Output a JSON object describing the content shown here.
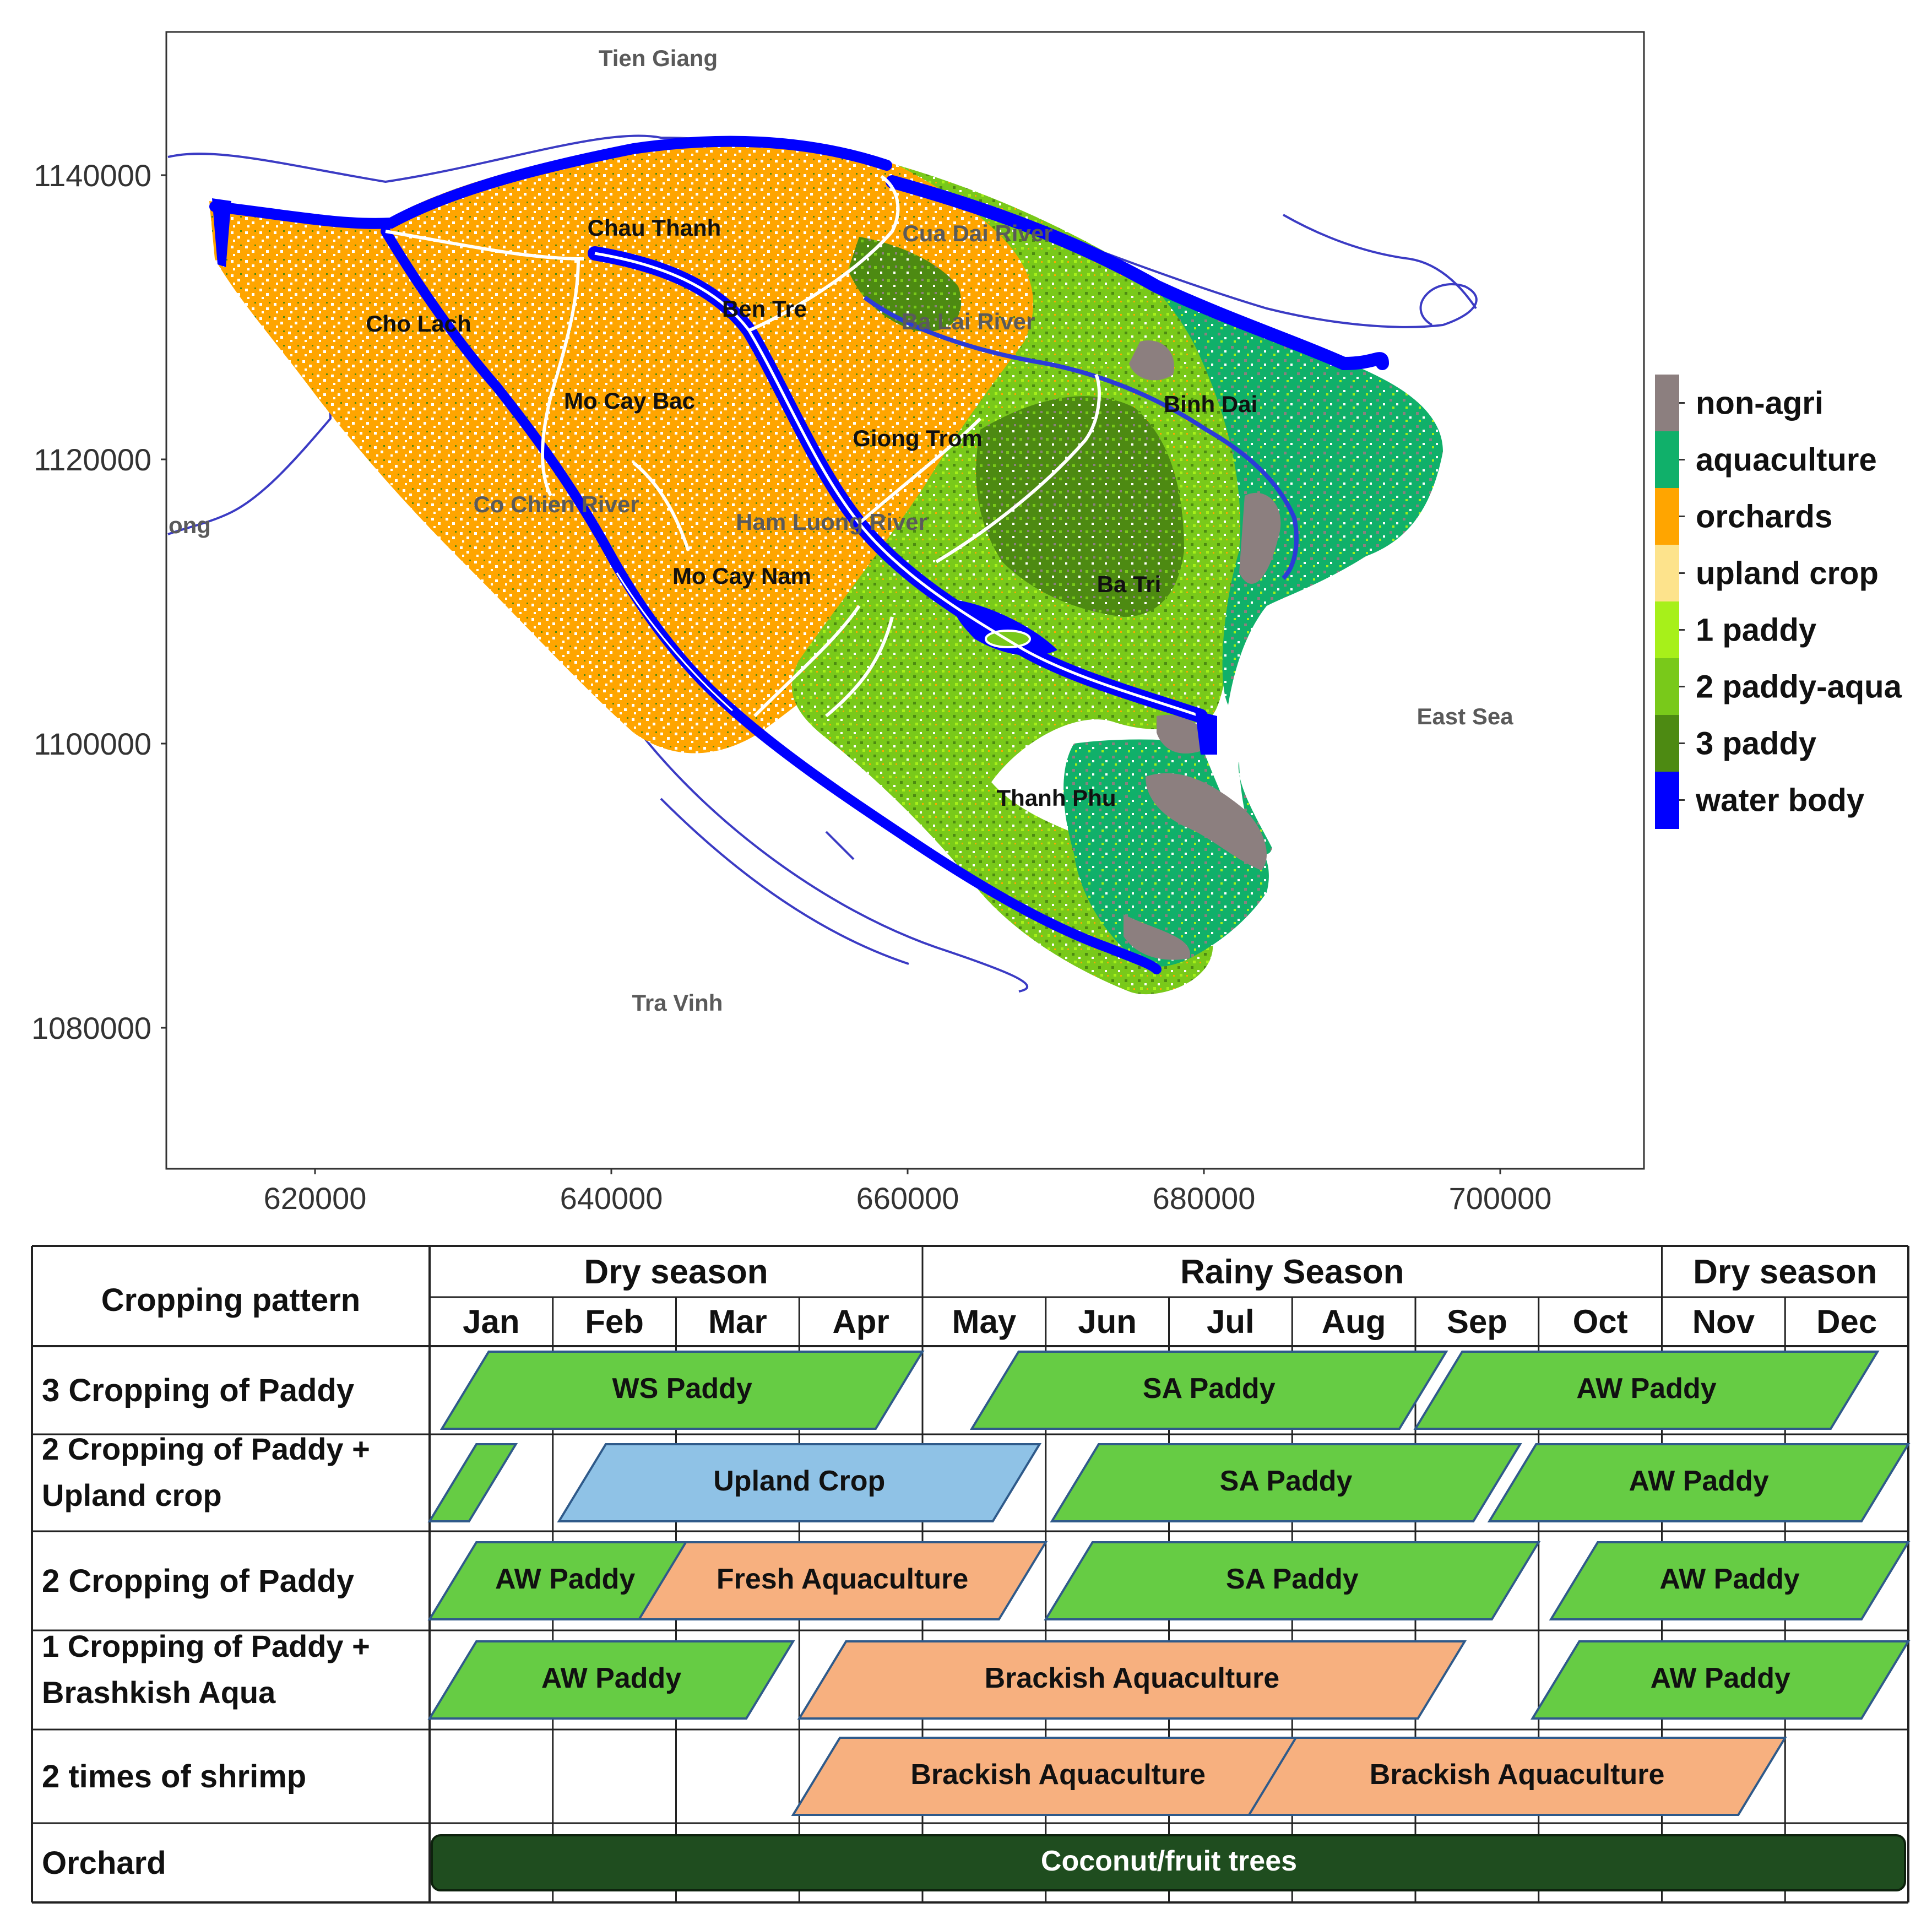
{
  "map": {
    "neighbors": [
      "Tien Giang",
      "Tra Vinh",
      "East Sea",
      "ong"
    ],
    "districts": [
      "Chau Thanh",
      "Cho Lach",
      "Ben Tre",
      "Mo Cay Bac",
      "Giong Trom",
      "Binh Dai",
      "Ba Tri",
      "Mo Cay Nam",
      "Thanh Phu"
    ],
    "rivers": [
      "Cua Dai River",
      "Ba Lai River",
      "Co Chien River",
      "Ham Luong River"
    ],
    "y_ticks": [
      "1140000",
      "1120000",
      "1100000",
      "1080000"
    ],
    "x_ticks": [
      "620000",
      "640000",
      "660000",
      "680000",
      "700000"
    ]
  },
  "legend": [
    {
      "label": "non-agri",
      "color": "#8c7f7f"
    },
    {
      "label": "aquaculture",
      "color": "#10b06a"
    },
    {
      "label": "orchards",
      "color": "#ffa500"
    },
    {
      "label": "upland crop",
      "color": "#fde38c"
    },
    {
      "label": "1 paddy",
      "color": "#a7f01a"
    },
    {
      "label": "2 paddy-aqua",
      "color": "#79c91a"
    },
    {
      "label": "3 paddy",
      "color": "#4d8a12"
    },
    {
      "label": "water body",
      "color": "#0000ff"
    }
  ],
  "calendar": {
    "pattern_header": "Cropping pattern",
    "seasons": [
      "Dry season",
      "Rainy Season",
      "Dry season"
    ],
    "months": [
      "Jan",
      "Feb",
      "Mar",
      "Apr",
      "May",
      "Jun",
      "Jul",
      "Aug",
      "Sep",
      "Oct",
      "Nov",
      "Dec"
    ],
    "rows": [
      {
        "name": "3 Cropping of Paddy",
        "bars": [
          {
            "label": "WS Paddy",
            "kind": "paddy",
            "start": 0.1,
            "end": 4.0
          },
          {
            "label": "SA Paddy",
            "kind": "paddy",
            "start": 4.4,
            "end": 8.25
          },
          {
            "label": "AW Paddy",
            "kind": "paddy",
            "start": 8.0,
            "end": 11.75
          }
        ]
      },
      {
        "name_lines": [
          "2 Cropping of Paddy +",
          "Upland crop"
        ],
        "bars": [
          {
            "label": "",
            "kind": "paddy",
            "start": 0.0,
            "end": 0.7
          },
          {
            "label": "Upland Crop",
            "kind": "upland",
            "start": 1.05,
            "end": 4.95
          },
          {
            "label": "SA Paddy",
            "kind": "paddy",
            "start": 5.05,
            "end": 8.85
          },
          {
            "label": "AW Paddy",
            "kind": "paddy",
            "start": 8.6,
            "end": 12.0
          }
        ]
      },
      {
        "name": "2 Cropping of Paddy",
        "bars": [
          {
            "label": "AW Paddy",
            "kind": "paddy",
            "start": 0.0,
            "end": 2.2
          },
          {
            "label": "Fresh Aquaculture",
            "kind": "aqua",
            "start": 1.7,
            "end": 5.0
          },
          {
            "label": "SA Paddy",
            "kind": "paddy",
            "start": 5.0,
            "end": 9.0
          },
          {
            "label": "AW Paddy",
            "kind": "paddy",
            "start": 9.1,
            "end": 12.0
          }
        ]
      },
      {
        "name_lines": [
          "1 Cropping of Paddy +",
          "Brashkish Aqua"
        ],
        "bars": [
          {
            "label": "AW Paddy",
            "kind": "paddy",
            "start": 0.0,
            "end": 2.95
          },
          {
            "label": "Brackish Aquaculture",
            "kind": "aqua",
            "start": 3.0,
            "end": 8.4
          },
          {
            "label": "AW Paddy",
            "kind": "paddy",
            "start": 8.95,
            "end": 12.0
          }
        ]
      },
      {
        "name": "2 times of shrimp",
        "bars": [
          {
            "label": "Brackish Aquaculture",
            "kind": "aqua",
            "start": 2.95,
            "end": 7.25
          },
          {
            "label": "Brackish Aquaculture",
            "kind": "aqua",
            "start": 6.65,
            "end": 11.0
          }
        ]
      },
      {
        "name": "Orchard",
        "bars": [
          {
            "label": "Coconut/fruit trees",
            "kind": "orchard",
            "start": 0.0,
            "end": 12.0
          }
        ]
      }
    ]
  }
}
